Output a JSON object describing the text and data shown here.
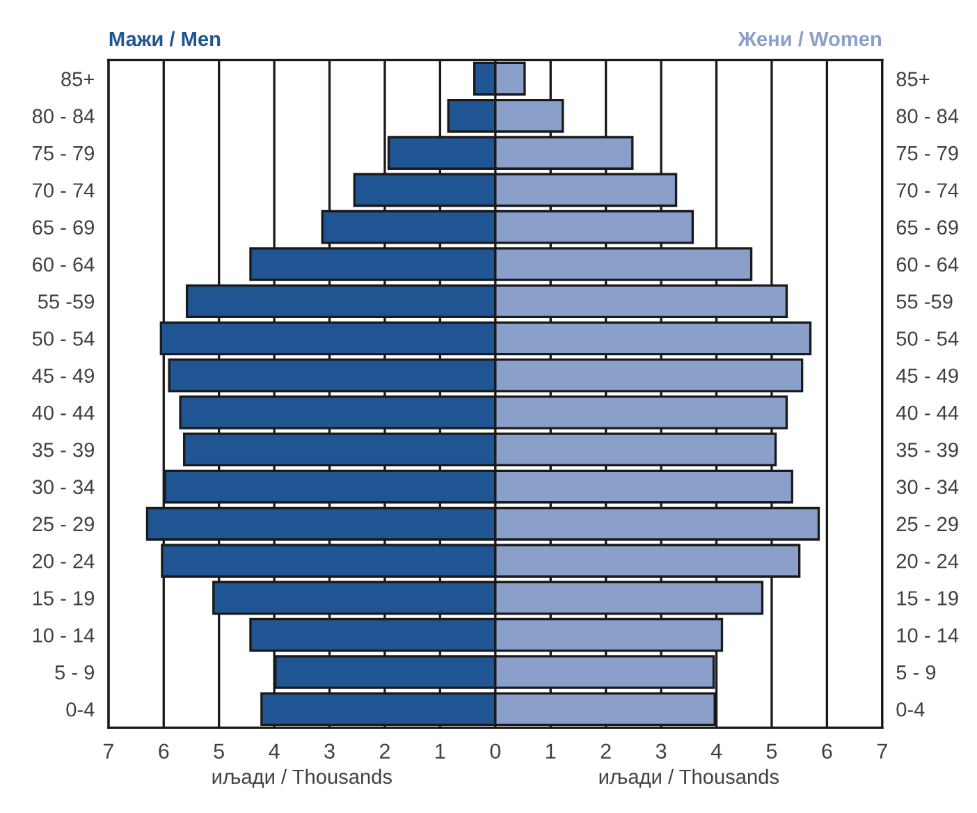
{
  "chart_data": {
    "type": "bar",
    "orientation": "horizontal",
    "xlabel": "иљади / Thousands",
    "categories": [
      "85+",
      "80 - 84",
      "75 - 79",
      "70 - 74",
      "65 - 69",
      "60 - 64",
      "55 -59",
      "50 - 54",
      "45 - 49",
      "40 - 44",
      "35 - 39",
      "30 - 34",
      "25 - 29",
      "20 - 24",
      "15 - 19",
      "10 - 14",
      "5 - 9",
      "0-4"
    ],
    "series": [
      {
        "name": "Мажи / Men",
        "color": "#1f5592",
        "values": [
          -0.38,
          -0.85,
          -1.93,
          -2.55,
          -3.13,
          -4.43,
          -5.58,
          -6.05,
          -5.9,
          -5.7,
          -5.63,
          -5.98,
          -6.3,
          -6.03,
          -5.1,
          -4.43,
          -3.98,
          -4.23
        ]
      },
      {
        "name": "Жени / Women",
        "color": "#8b9fcb",
        "values": [
          0.53,
          1.22,
          2.48,
          3.27,
          3.57,
          4.63,
          5.27,
          5.7,
          5.55,
          5.27,
          5.07,
          5.37,
          5.85,
          5.5,
          4.83,
          4.1,
          3.95,
          3.97
        ]
      }
    ],
    "xlim": [
      -7,
      7
    ],
    "xticks": [
      {
        "value": -7,
        "label": "7"
      },
      {
        "value": -6,
        "label": "6"
      },
      {
        "value": -5,
        "label": "5"
      },
      {
        "value": -4,
        "label": "4"
      },
      {
        "value": -3,
        "label": "3"
      },
      {
        "value": -2,
        "label": "2"
      },
      {
        "value": -1,
        "label": "1"
      },
      0,
      1,
      2,
      3,
      4,
      5,
      6,
      7
    ],
    "stacked": true,
    "grid": "x",
    "legend": false
  }
}
